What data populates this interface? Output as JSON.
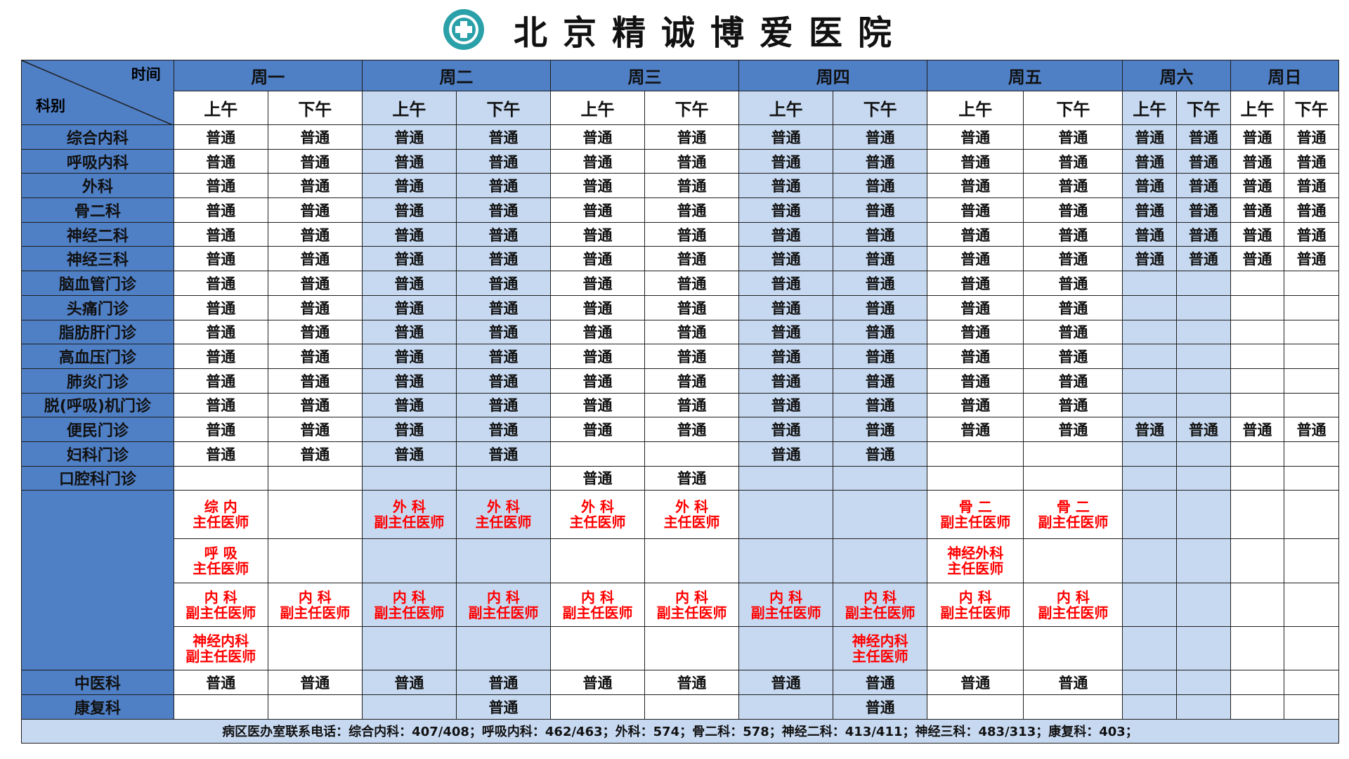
{
  "header": {
    "title": "北京精诚博爱医院",
    "logo_icon": "hospital-cross-logo"
  },
  "corner": {
    "time": "时间",
    "dept": "科别"
  },
  "days": [
    "周一",
    "周二",
    "周三",
    "周四",
    "周五",
    "周六",
    "周日"
  ],
  "halves": [
    "上午",
    "下午"
  ],
  "departments": [
    {
      "name": "综合内科",
      "slots": [
        "普通",
        "普通",
        "普通",
        "普通",
        "普通",
        "普通",
        "普通",
        "普通",
        "普通",
        "普通",
        "普通",
        "普通",
        "普通",
        "普通"
      ]
    },
    {
      "name": "呼吸内科",
      "slots": [
        "普通",
        "普通",
        "普通",
        "普通",
        "普通",
        "普通",
        "普通",
        "普通",
        "普通",
        "普通",
        "普通",
        "普通",
        "普通",
        "普通"
      ]
    },
    {
      "name": "外科",
      "slots": [
        "普通",
        "普通",
        "普通",
        "普通",
        "普通",
        "普通",
        "普通",
        "普通",
        "普通",
        "普通",
        "普通",
        "普通",
        "普通",
        "普通"
      ]
    },
    {
      "name": "骨二科",
      "slots": [
        "普通",
        "普通",
        "普通",
        "普通",
        "普通",
        "普通",
        "普通",
        "普通",
        "普通",
        "普通",
        "普通",
        "普通",
        "普通",
        "普通"
      ]
    },
    {
      "name": "神经二科",
      "slots": [
        "普通",
        "普通",
        "普通",
        "普通",
        "普通",
        "普通",
        "普通",
        "普通",
        "普通",
        "普通",
        "普通",
        "普通",
        "普通",
        "普通"
      ]
    },
    {
      "name": "神经三科",
      "slots": [
        "普通",
        "普通",
        "普通",
        "普通",
        "普通",
        "普通",
        "普通",
        "普通",
        "普通",
        "普通",
        "普通",
        "普通",
        "普通",
        "普通"
      ]
    },
    {
      "name": "脑血管门诊",
      "slots": [
        "普通",
        "普通",
        "普通",
        "普通",
        "普通",
        "普通",
        "普通",
        "普通",
        "普通",
        "普通",
        "",
        "",
        "",
        ""
      ]
    },
    {
      "name": "头痛门诊",
      "slots": [
        "普通",
        "普通",
        "普通",
        "普通",
        "普通",
        "普通",
        "普通",
        "普通",
        "普通",
        "普通",
        "",
        "",
        "",
        ""
      ]
    },
    {
      "name": "脂肪肝门诊",
      "slots": [
        "普通",
        "普通",
        "普通",
        "普通",
        "普通",
        "普通",
        "普通",
        "普通",
        "普通",
        "普通",
        "",
        "",
        "",
        ""
      ]
    },
    {
      "name": "高血压门诊",
      "slots": [
        "普通",
        "普通",
        "普通",
        "普通",
        "普通",
        "普通",
        "普通",
        "普通",
        "普通",
        "普通",
        "",
        "",
        "",
        ""
      ]
    },
    {
      "name": "肺炎门诊",
      "slots": [
        "普通",
        "普通",
        "普通",
        "普通",
        "普通",
        "普通",
        "普通",
        "普通",
        "普通",
        "普通",
        "",
        "",
        "",
        ""
      ]
    },
    {
      "name": "脱(呼吸)机门诊",
      "slots": [
        "普通",
        "普通",
        "普通",
        "普通",
        "普通",
        "普通",
        "普通",
        "普通",
        "普通",
        "普通",
        "",
        "",
        "",
        ""
      ]
    },
    {
      "name": "便民门诊",
      "slots": [
        "普通",
        "普通",
        "普通",
        "普通",
        "普通",
        "普通",
        "普通",
        "普通",
        "普通",
        "普通",
        "普通",
        "普通",
        "普通",
        "普通"
      ]
    },
    {
      "name": "妇科门诊",
      "slots": [
        "普通",
        "普通",
        "普通",
        "普通",
        "",
        "",
        "普通",
        "普通",
        "",
        "",
        "",
        "",
        "",
        ""
      ]
    },
    {
      "name": "口腔科门诊",
      "slots": [
        "",
        "",
        "",
        "",
        "普通",
        "普通",
        "",
        "",
        "",
        "",
        "",
        "",
        "",
        ""
      ]
    }
  ],
  "expert_rows": [
    [
      [
        "综 内",
        "主任医师"
      ],
      [],
      [
        "外 科",
        "副主任医师"
      ],
      [
        "外 科",
        "主任医师"
      ],
      [
        "外 科",
        "主任医师"
      ],
      [
        "外 科",
        "主任医师"
      ],
      [],
      [],
      [
        "骨 二",
        "副主任医师"
      ],
      [
        "骨 二",
        "副主任医师"
      ],
      [],
      [],
      [],
      []
    ],
    [
      [
        "呼 吸",
        "主任医师"
      ],
      [],
      [],
      [],
      [],
      [],
      [],
      [],
      [
        "神经外科",
        "主任医师"
      ],
      [],
      [],
      [],
      [],
      []
    ],
    [
      [
        "内 科",
        "副主任医师"
      ],
      [
        "内 科",
        "副主任医师"
      ],
      [
        "内 科",
        "副主任医师"
      ],
      [
        "内 科",
        "副主任医师"
      ],
      [
        "内 科",
        "副主任医师"
      ],
      [
        "内 科",
        "副主任医师"
      ],
      [
        "内 科",
        "副主任医师"
      ],
      [
        "内 科",
        "副主任医师"
      ],
      [
        "内 科",
        "副主任医师"
      ],
      [
        "内 科",
        "副主任医师"
      ],
      [],
      [],
      [],
      []
    ],
    [
      [
        "神经内科",
        "副主任医师"
      ],
      [],
      [],
      [],
      [],
      [],
      [],
      [
        "神经内科",
        "主任医师"
      ],
      [],
      [],
      [],
      [],
      [],
      []
    ]
  ],
  "bottom_departments": [
    {
      "name": "中医科",
      "slots": [
        "普通",
        "普通",
        "普通",
        "普通",
        "普通",
        "普通",
        "普通",
        "普通",
        "普通",
        "普通",
        "",
        "",
        "",
        ""
      ]
    },
    {
      "name": "康复科",
      "slots": [
        "",
        "",
        "",
        "普通",
        "",
        "",
        "",
        "普通",
        "",
        "",
        "",
        "",
        "",
        ""
      ]
    }
  ],
  "footer": "病区医办室联系电话：综合内科：407/408；呼吸内科：462/463；外科：574；骨二科：578；神经二科：413/411；神经三科：483/313；康复科：403；"
}
